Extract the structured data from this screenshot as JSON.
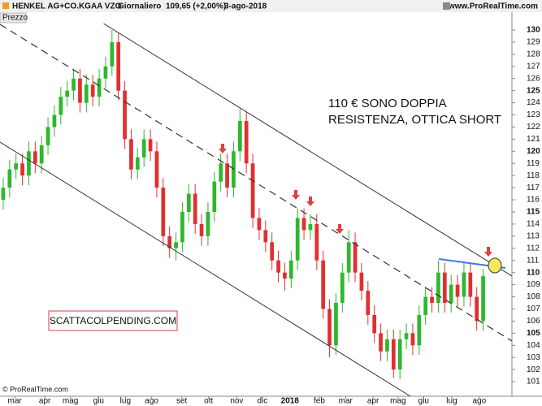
{
  "header": {
    "symbol": "HENKEL AG+CO.KGAA VZO",
    "period": "Giornaliero",
    "last": "109,65 (+2,00%)",
    "date": "3-ago-2018",
    "site": "www.ProRealTime.com"
  },
  "chart_data": {
    "type": "candlestick",
    "panel_label": "Prezzo",
    "open": [
      116,
      117,
      118.5,
      119,
      118,
      120,
      119,
      120.5,
      122,
      123,
      124.5,
      125,
      126,
      124,
      125.5,
      124.5,
      126,
      127,
      129,
      125,
      121,
      118.5,
      119.5,
      121,
      120,
      117,
      113,
      112,
      112.5,
      115,
      116.5,
      114,
      113,
      115,
      117.5,
      119,
      117,
      120,
      122.5,
      119,
      114.5,
      113.5,
      112.5,
      111,
      110,
      109.5,
      111,
      114.5,
      113.5,
      114,
      111,
      107,
      104,
      107.5,
      110,
      112.5,
      110,
      108.5,
      106.5,
      105,
      103.5,
      104.5,
      102,
      104.5,
      105,
      104,
      106.5,
      108,
      107.5,
      110,
      107.5,
      109,
      108,
      110,
      108,
      106
    ],
    "high": [
      117.8,
      119.3,
      119.8,
      119.8,
      120.8,
      120.8,
      121.3,
      122.8,
      123.8,
      125.3,
      125.8,
      126.8,
      126.8,
      126.3,
      126.3,
      126.8,
      127.8,
      130,
      129.8,
      125.8,
      121.8,
      120.3,
      121.8,
      121.8,
      120.8,
      117.8,
      113.8,
      113.3,
      115.8,
      117.3,
      117.3,
      114.8,
      115.8,
      118.3,
      119.8,
      119.8,
      120.8,
      123.5,
      123.3,
      119.8,
      115.3,
      114.3,
      113.3,
      111.8,
      110.8,
      111.8,
      115.3,
      115.3,
      114.8,
      114.8,
      111.8,
      107.8,
      108.3,
      110.8,
      113.5,
      113.3,
      110.8,
      109.3,
      107.3,
      105.8,
      105.3,
      105.3,
      105.3,
      105.8,
      105.8,
      107.3,
      108.8,
      108.8,
      111,
      110.8,
      109.8,
      109.8,
      110.8,
      110.8,
      108.8,
      110.3
    ],
    "low": [
      115.2,
      116.2,
      117.7,
      117.2,
      117.2,
      118.2,
      118.2,
      119.7,
      121.2,
      122.2,
      123.7,
      124.2,
      123.2,
      123.2,
      123.7,
      123.7,
      125.2,
      126.2,
      124.2,
      120.2,
      117.7,
      117.7,
      118.7,
      119.2,
      116.2,
      112.2,
      111.2,
      111,
      111.7,
      114.2,
      113.2,
      112.2,
      112.2,
      114.2,
      116.7,
      116.2,
      116.2,
      119.2,
      118.2,
      113.7,
      112.7,
      111.7,
      110.2,
      109.2,
      108.5,
      108.7,
      110.2,
      112.7,
      112.7,
      110.2,
      106.2,
      103,
      103.2,
      106.7,
      109.2,
      109.2,
      107.7,
      105.7,
      104.2,
      102.7,
      102.7,
      101.3,
      101.2,
      103.7,
      103.2,
      103.2,
      105.7,
      106.7,
      106.7,
      106.7,
      106.7,
      107.2,
      107.2,
      107.2,
      105.2,
      105.2
    ],
    "close": [
      117,
      118.5,
      119,
      118,
      120,
      119,
      120.5,
      122,
      123,
      124.5,
      125,
      126,
      124,
      125.5,
      124.5,
      126,
      127,
      129,
      125,
      121,
      118.5,
      119.5,
      121,
      120,
      117,
      113,
      112,
      112.5,
      115,
      116.5,
      114,
      113,
      115,
      117.5,
      119,
      117,
      120,
      122.5,
      119,
      114.5,
      113.5,
      112.5,
      111,
      110,
      109.5,
      111,
      114.5,
      113.5,
      114,
      111,
      107,
      104,
      107.5,
      110,
      112.5,
      110,
      108.5,
      106.5,
      105,
      103.5,
      104.5,
      102,
      104.5,
      105,
      104,
      106.5,
      108,
      107.5,
      110,
      107.5,
      109,
      108,
      110,
      108,
      106,
      109.7
    ],
    "up_color": "#2db82d",
    "down_color": "#e03030",
    "xlim": [
      0,
      80
    ],
    "xticks": [
      {
        "value": 2.3,
        "label": "mar"
      },
      {
        "value": 7.0,
        "label": "apr"
      },
      {
        "value": 11.0,
        "label": "mag"
      },
      {
        "value": 15.4,
        "label": "giu"
      },
      {
        "value": 19.6,
        "label": "lug"
      },
      {
        "value": 23.7,
        "label": "ago"
      },
      {
        "value": 28.4,
        "label": "set"
      },
      {
        "value": 32.6,
        "label": "ott"
      },
      {
        "value": 37.0,
        "label": "nov"
      },
      {
        "value": 41.0,
        "label": "dic"
      },
      {
        "value": 45.3,
        "label": "2018"
      },
      {
        "value": 49.9,
        "label": "feb"
      },
      {
        "value": 54.0,
        "label": "mar"
      },
      {
        "value": 58.3,
        "label": "apr"
      },
      {
        "value": 62.2,
        "label": "mag"
      },
      {
        "value": 66.2,
        "label": "giu"
      },
      {
        "value": 70.6,
        "label": "lug"
      },
      {
        "value": 74.9,
        "label": "ago"
      }
    ],
    "ylim": [
      99.8,
      130.5
    ],
    "yticks": [
      101,
      102,
      103,
      104,
      105,
      106,
      107,
      108,
      109,
      110,
      111,
      112,
      113,
      114,
      115,
      116,
      117,
      118,
      119,
      120,
      121,
      122,
      123,
      124,
      125,
      126,
      127,
      128,
      129,
      130
    ],
    "annotation": [
      "110 € SONO DOPPIA",
      "RESISTENZA, OTTICA SHORT"
    ],
    "watermark": "SCATTACOLPENDING.COM",
    "copyright": "© ProRealTime.com"
  }
}
